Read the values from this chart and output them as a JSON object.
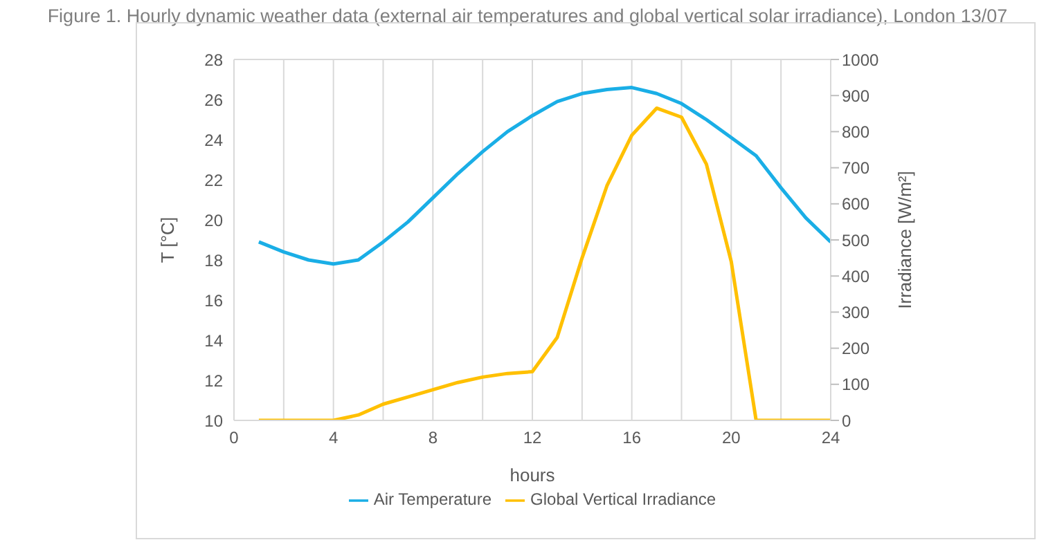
{
  "chart_data": {
    "type": "line",
    "title": "Figure 1. Hourly dynamic weather data (external air temperatures and global vertical solar irradiance), London 13/07",
    "xlabel": "hours",
    "ylabel": "T [°C]",
    "y2label": "Irradiance [W/m²]",
    "x": [
      1,
      2,
      3,
      4,
      5,
      6,
      7,
      8,
      9,
      10,
      11,
      12,
      13,
      14,
      15,
      16,
      17,
      18,
      19,
      20,
      21,
      22,
      23,
      24
    ],
    "series": [
      {
        "name": "Air Temperature",
        "color": "#1aaee6",
        "values": [
          18.9,
          18.4,
          18.0,
          17.8,
          18.0,
          18.9,
          19.9,
          21.1,
          22.3,
          23.4,
          24.4,
          25.2,
          25.9,
          26.3,
          26.5,
          26.6,
          26.3,
          25.8,
          25.0,
          24.1,
          23.2,
          21.6,
          20.1,
          18.9
        ]
      },
      {
        "name": "Global Vertical Irradiance",
        "color": "#ffc000",
        "axis": "y2",
        "values": [
          0,
          0,
          0,
          0,
          15,
          45,
          65,
          85,
          105,
          120,
          130,
          135,
          230,
          450,
          650,
          790,
          865,
          840,
          710,
          440,
          0,
          0,
          0,
          0
        ]
      }
    ],
    "xlim": [
      0,
      24
    ],
    "xticks": [
      0,
      {
        "value": 2,
        "label": null
      },
      4,
      {
        "value": 6,
        "label": null
      },
      8,
      {
        "value": 10,
        "label": null
      },
      12,
      {
        "value": 14,
        "label": null
      },
      16,
      {
        "value": 18,
        "label": null
      },
      20,
      {
        "value": 22,
        "label": null
      },
      24
    ],
    "ylim": [
      10,
      28
    ],
    "yticks": [
      10,
      12,
      14,
      16,
      18,
      20,
      22,
      24,
      26,
      28
    ],
    "y2lim": [
      0,
      1000
    ],
    "y2ticks": [
      0,
      100,
      200,
      300,
      400,
      500,
      600,
      700,
      800,
      900,
      1000
    ],
    "grid": true,
    "legend": "bottom",
    "marker": "none",
    "line_style": "solid"
  }
}
